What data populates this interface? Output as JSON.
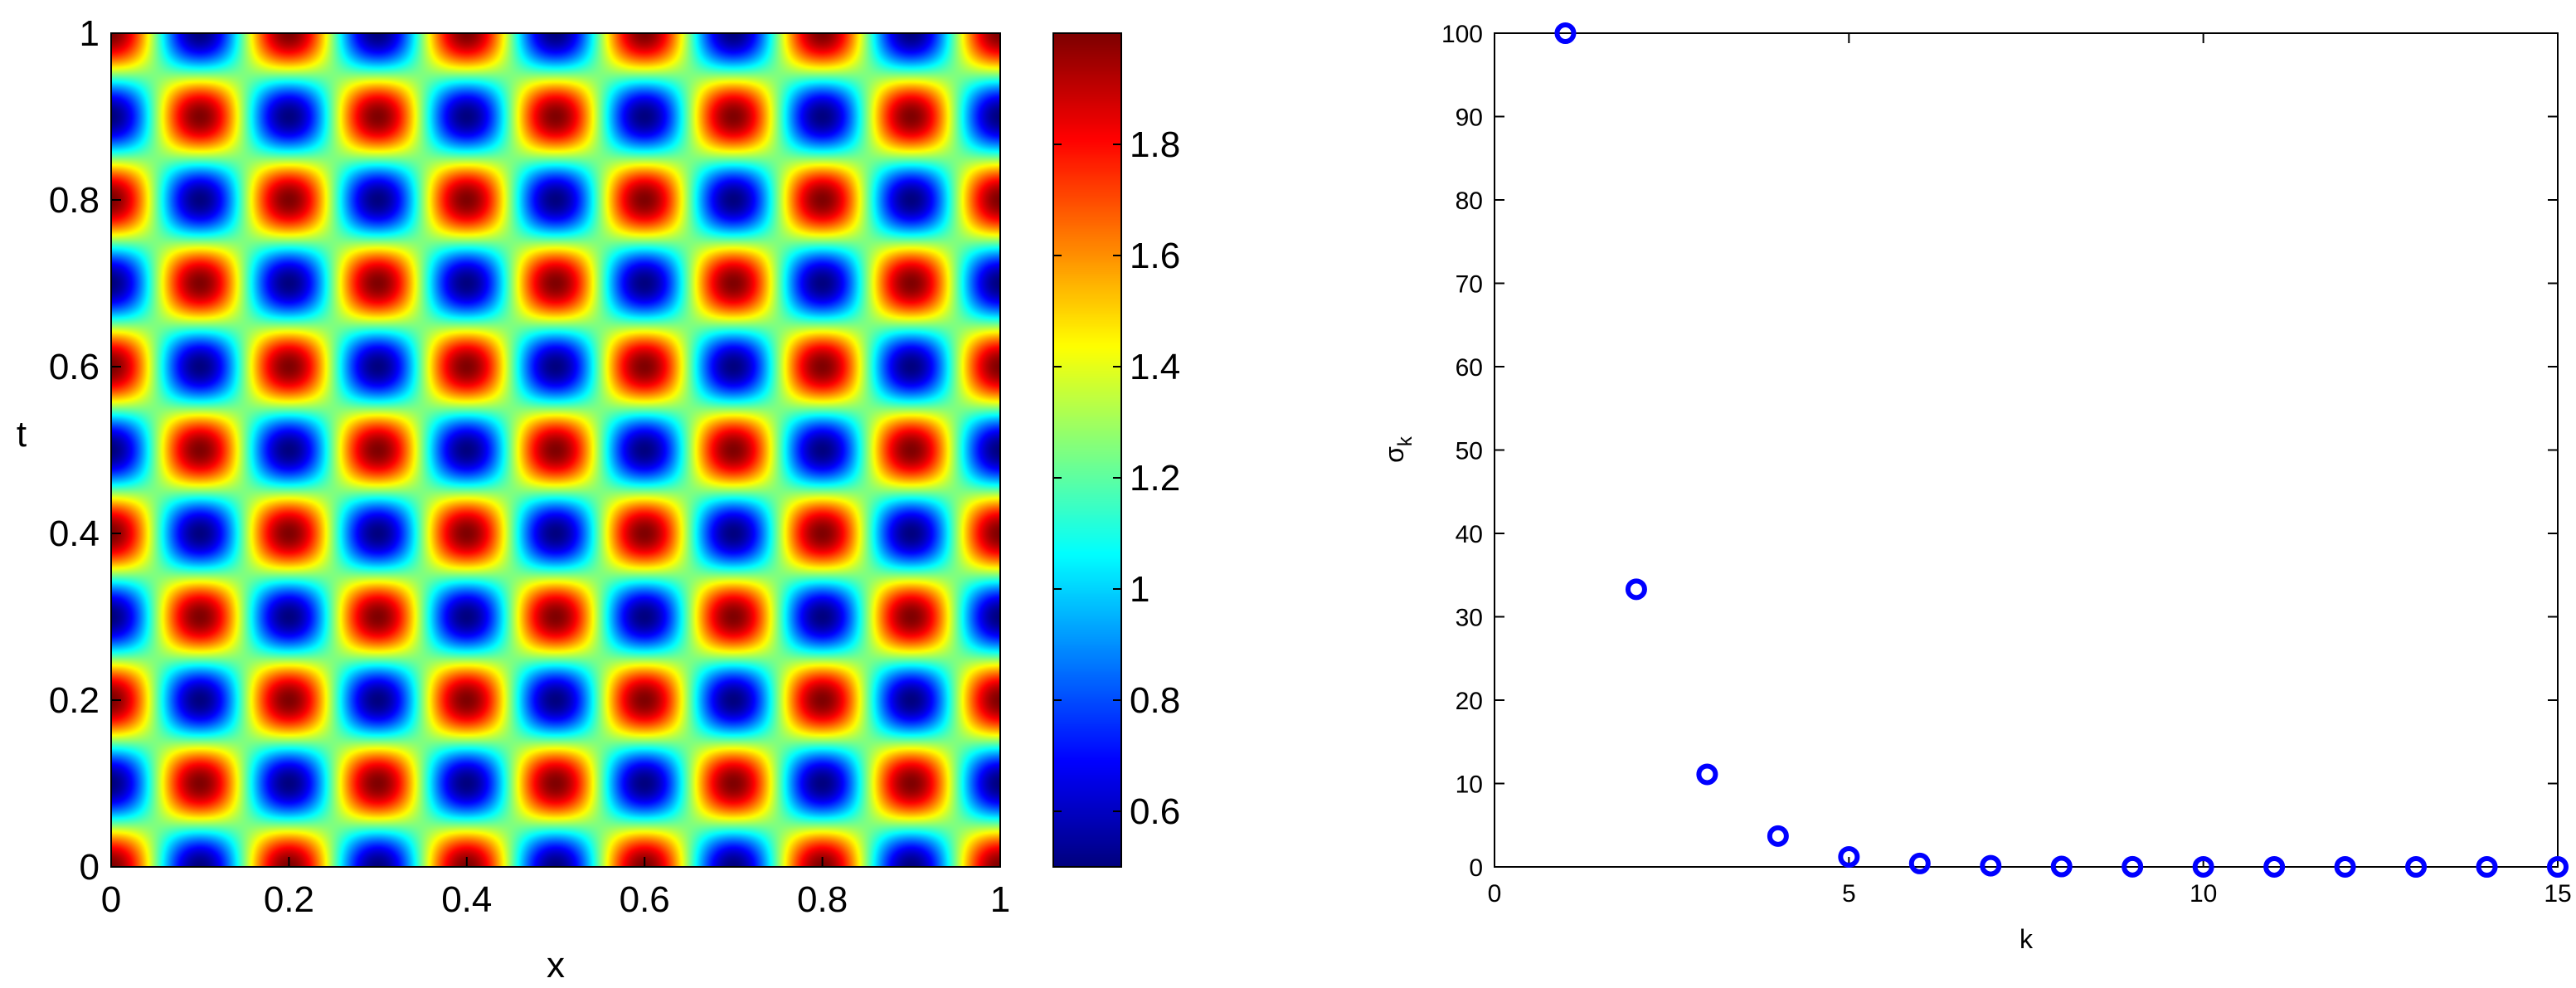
{
  "chart_data": [
    {
      "type": "heatmap",
      "title": "",
      "xlabel": "x",
      "ylabel": "t",
      "xlim": [
        0,
        1
      ],
      "ylim": [
        0,
        1
      ],
      "xticks": [
        "0",
        "0.2",
        "0.4",
        "0.6",
        "0.8",
        "1"
      ],
      "yticks": [
        "0",
        "0.2",
        "0.4",
        "0.6",
        "0.8",
        "1"
      ],
      "colormap": "jet",
      "field": "1.25 + 0.75*cos(10*pi*x)*cos(10*pi*t)",
      "colorbar": {
        "range": [
          0.5,
          2.0
        ],
        "ticks": [
          "0.6",
          "0.8",
          "1",
          "1.2",
          "1.4",
          "1.6",
          "1.8"
        ],
        "tick_values": [
          0.6,
          0.8,
          1.0,
          1.2,
          1.4,
          1.6,
          1.8
        ]
      }
    },
    {
      "type": "scatter",
      "title": "",
      "xlabel": "k",
      "ylabel": "σ",
      "ylabel_subscript": "k",
      "xlim": [
        0,
        15
      ],
      "ylim": [
        0,
        100
      ],
      "xticks": [
        "0",
        "5",
        "10",
        "15"
      ],
      "yticks": [
        "0",
        "10",
        "20",
        "30",
        "40",
        "50",
        "60",
        "70",
        "80",
        "90",
        "100"
      ],
      "marker": "circle",
      "color": "#0000ff",
      "x": [
        1,
        2,
        3,
        4,
        5,
        6,
        7,
        8,
        9,
        10,
        11,
        12,
        13,
        14,
        15
      ],
      "y": [
        100,
        33.3,
        11.1,
        3.7,
        1.2,
        0.41,
        0.14,
        0.05,
        0.015,
        0.005,
        0.002,
        0.001,
        0.0002,
        0.0001,
        0.0
      ]
    }
  ]
}
